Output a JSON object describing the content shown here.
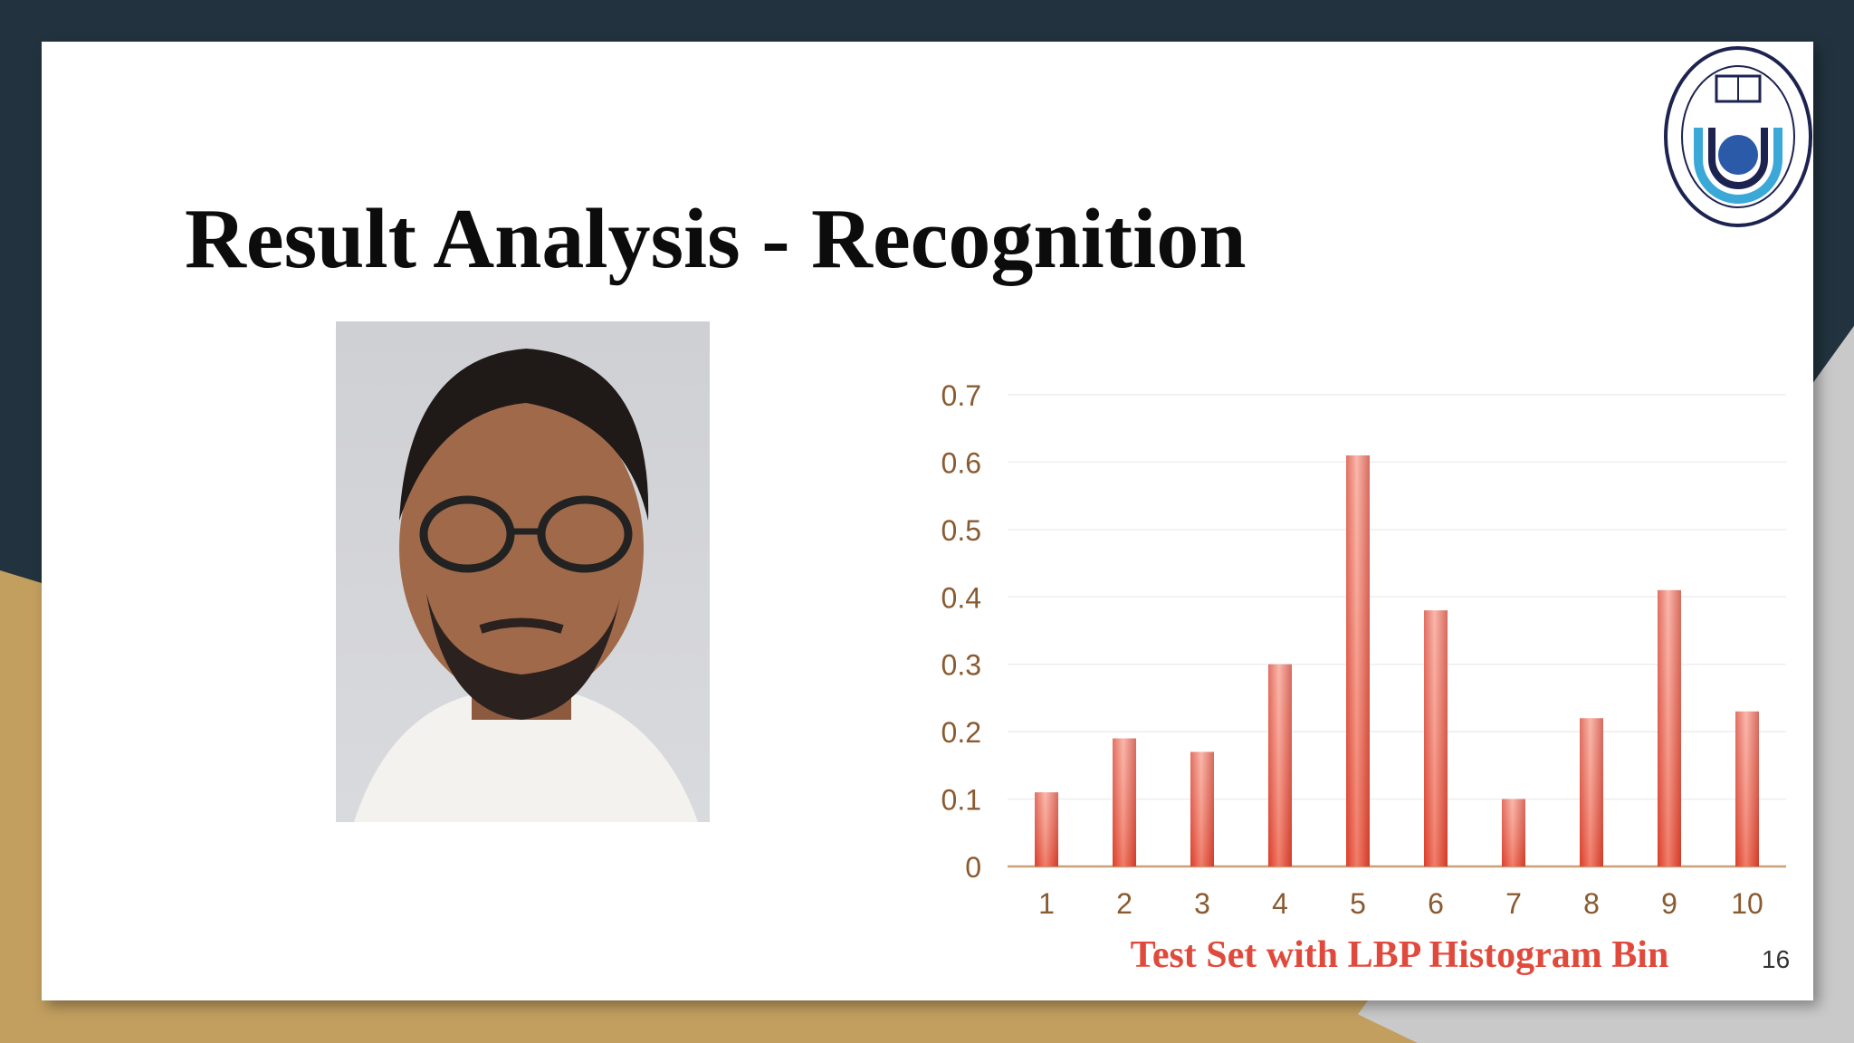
{
  "slide": {
    "title": "Result Analysis - Recognition",
    "page_number": "16"
  },
  "logo": {
    "text": "SEEK KNOWLEDGE NORTH SOUTH UNIVERSITY 1992"
  },
  "photo": {
    "description": "portrait-photo"
  },
  "colors": {
    "background_dark": "#22333f",
    "accent_gold": "#c29f5f",
    "bar": "#e2493b",
    "axis_text": "#8a5a30",
    "axis_title": "#e04a3c"
  },
  "chart_data": {
    "type": "bar",
    "categories": [
      "1",
      "2",
      "3",
      "4",
      "5",
      "6",
      "7",
      "8",
      "9",
      "10"
    ],
    "values": [
      0.11,
      0.19,
      0.17,
      0.3,
      0.61,
      0.38,
      0.1,
      0.22,
      0.41,
      0.23
    ],
    "xlabel": "Test Set with LBP Histogram Bin",
    "ylabel": "",
    "ylim": [
      0,
      0.7
    ],
    "yticks": [
      "0",
      "0.1",
      "0.2",
      "0.3",
      "0.4",
      "0.5",
      "0.6",
      "0.7"
    ],
    "grid": true,
    "legend": "none"
  }
}
